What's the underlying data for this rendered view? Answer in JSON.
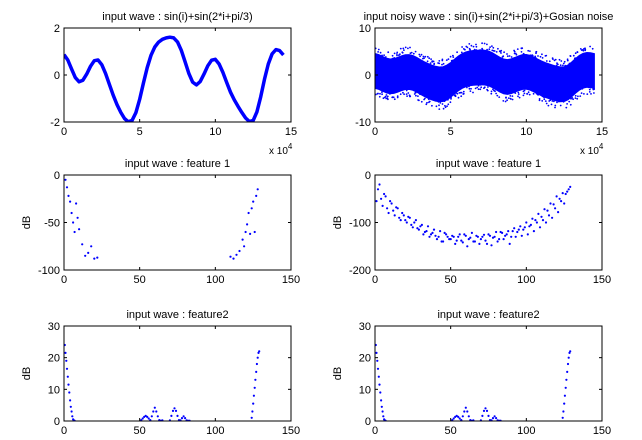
{
  "figure": {
    "background": "#ffffff",
    "plot_color": "#0000ff",
    "axis_color": "#000000"
  },
  "chart_data": [
    {
      "id": "p1",
      "type": "line",
      "title": "input wave : sin(i)+sin(2*i+pi/3)",
      "xlabel": "",
      "ylabel": "",
      "x_multiplier": "x 10",
      "x_multiplier_exp": "4",
      "xlim": [
        0,
        15
      ],
      "ylim": [
        -2,
        2
      ],
      "xticks": [
        0,
        5,
        10,
        15
      ],
      "yticks": [
        -2,
        0,
        2
      ],
      "series": [
        {
          "x": [
            0,
            0.25,
            0.5,
            0.75,
            1,
            1.25,
            1.5,
            1.75,
            2,
            2.25,
            2.5,
            2.75,
            3,
            3.25,
            3.5,
            3.75,
            4,
            4.25,
            4.5,
            4.75,
            5,
            5.25,
            5.5,
            5.75,
            6,
            6.25,
            6.5,
            6.75,
            7,
            7.25,
            7.5,
            7.75,
            8,
            8.25,
            8.5,
            8.75,
            9,
            9.25,
            9.5,
            9.75,
            10,
            10.25,
            10.5,
            10.75,
            11,
            11.25,
            11.5,
            11.75,
            12,
            12.25,
            12.5,
            12.75,
            13,
            13.25,
            13.5,
            13.75,
            14,
            14.25,
            14.5
          ],
          "y": [
            0.87,
            0.64,
            0.25,
            -0.11,
            -0.29,
            -0.22,
            0.04,
            0.37,
            0.61,
            0.64,
            0.44,
            0.06,
            -0.4,
            -0.86,
            -1.26,
            -1.59,
            -1.85,
            -1.99,
            -1.93,
            -1.6,
            -1.03,
            -0.35,
            0.31,
            0.84,
            1.19,
            1.4,
            1.52,
            1.58,
            1.61,
            1.58,
            1.41,
            1.05,
            0.56,
            0.06,
            -0.3,
            -0.42,
            -0.28,
            0.04,
            0.39,
            0.63,
            0.67,
            0.47,
            0.11,
            -0.32,
            -0.73,
            -1.06,
            -1.33,
            -1.59,
            -1.83,
            -1.98,
            -1.93,
            -1.57,
            -0.93,
            -0.18,
            0.47,
            0.9,
            1.08,
            1.04,
            0.85
          ]
        }
      ]
    },
    {
      "id": "p2",
      "type": "scatter",
      "title": "input noisy wave  : sin(i)+sin(2*i+pi/3)+Gosian noise",
      "xlabel": "",
      "ylabel": "",
      "x_multiplier": "x 10",
      "x_multiplier_exp": "4",
      "xlim": [
        0,
        15
      ],
      "ylim": [
        -10,
        10
      ],
      "xticks": [
        0,
        5,
        10,
        15
      ],
      "yticks": [
        -10,
        0,
        10
      ],
      "noise_band": 3.7,
      "series": [
        {
          "x": [
            0,
            0.25,
            0.5,
            0.75,
            1,
            1.25,
            1.5,
            1.75,
            2,
            2.25,
            2.5,
            2.75,
            3,
            3.25,
            3.5,
            3.75,
            4,
            4.25,
            4.5,
            4.75,
            5,
            5.25,
            5.5,
            5.75,
            6,
            6.25,
            6.5,
            6.75,
            7,
            7.25,
            7.5,
            7.75,
            8,
            8.25,
            8.5,
            8.75,
            9,
            9.25,
            9.5,
            9.75,
            10,
            10.25,
            10.5,
            10.75,
            11,
            11.25,
            11.5,
            11.75,
            12,
            12.25,
            12.5,
            12.75,
            13,
            13.25,
            13.5,
            13.75,
            14,
            14.25,
            14.5
          ],
          "y": [
            0.87,
            0.64,
            0.25,
            -0.11,
            -0.29,
            -0.22,
            0.04,
            0.37,
            0.61,
            0.64,
            0.44,
            0.06,
            -0.4,
            -0.86,
            -1.26,
            -1.59,
            -1.85,
            -1.99,
            -1.93,
            -1.6,
            -1.03,
            -0.35,
            0.31,
            0.84,
            1.19,
            1.4,
            1.52,
            1.58,
            1.61,
            1.58,
            1.41,
            1.05,
            0.56,
            0.06,
            -0.3,
            -0.42,
            -0.28,
            0.04,
            0.39,
            0.63,
            0.67,
            0.47,
            0.11,
            -0.32,
            -0.73,
            -1.06,
            -1.33,
            -1.59,
            -1.83,
            -1.98,
            -1.93,
            -1.57,
            -0.93,
            -0.18,
            0.47,
            0.9,
            1.08,
            1.04,
            0.85
          ]
        }
      ]
    },
    {
      "id": "p3",
      "type": "scatter",
      "title": "input wave : feature 1",
      "xlabel": "",
      "ylabel": "dB",
      "xlim": [
        0,
        150
      ],
      "ylim": [
        -100,
        0
      ],
      "xticks": [
        0,
        50,
        100,
        150
      ],
      "yticks": [
        -100,
        -50,
        0
      ],
      "series": [
        {
          "x": [
            1,
            2,
            3,
            4,
            5,
            6,
            7,
            8,
            9,
            10,
            12,
            14,
            16,
            18,
            20,
            22,
            110,
            112,
            114,
            116,
            118,
            119,
            120,
            121,
            122,
            123,
            124,
            125,
            126,
            127,
            128
          ],
          "y": [
            -5,
            -13,
            -22,
            -28,
            -40,
            -50,
            -60,
            -30,
            -45,
            -57,
            -73,
            -85,
            -82,
            -75,
            -88,
            -87,
            -86,
            -88,
            -84,
            -80,
            -68,
            -75,
            -60,
            -52,
            -40,
            -62,
            -35,
            -28,
            -60,
            -22,
            -15
          ]
        }
      ]
    },
    {
      "id": "p4",
      "type": "scatter",
      "title": "input wave : feature 1",
      "xlabel": "",
      "ylabel": "dB",
      "xlim": [
        0,
        150
      ],
      "ylim": [
        -200,
        0
      ],
      "xticks": [
        0,
        50,
        100,
        150
      ],
      "yticks": [
        -200,
        -100,
        0
      ],
      "series": [
        {
          "x": [
            1,
            3,
            5,
            7,
            9,
            11,
            13,
            15,
            17,
            19,
            21,
            23,
            25,
            27,
            29,
            31,
            33,
            35,
            37,
            39,
            41,
            43,
            45,
            47,
            49,
            51,
            53,
            55,
            57,
            59,
            61,
            63,
            65,
            67,
            69,
            71,
            73,
            75,
            77,
            79,
            81,
            83,
            85,
            87,
            89,
            91,
            93,
            95,
            97,
            99,
            101,
            103,
            105,
            107,
            109,
            111,
            113,
            115,
            117,
            119,
            121,
            123,
            125,
            127,
            129,
            2,
            4,
            6,
            8,
            10,
            12,
            14,
            16,
            18,
            20,
            22,
            24,
            26,
            28,
            30,
            32,
            34,
            36,
            38,
            40,
            42,
            44,
            46,
            48,
            50,
            52,
            54,
            56,
            58,
            60,
            62,
            64,
            66,
            68,
            70,
            72,
            74,
            76,
            78,
            80,
            82,
            84,
            86,
            88,
            90,
            92,
            94,
            96,
            98,
            100,
            102,
            104,
            106,
            108,
            110,
            112,
            114,
            116,
            118,
            120,
            122,
            124,
            126,
            128
          ],
          "y": [
            -55,
            -20,
            -65,
            -45,
            -80,
            -60,
            -85,
            -70,
            -95,
            -85,
            -100,
            -90,
            -110,
            -95,
            -115,
            -105,
            -120,
            -108,
            -125,
            -115,
            -135,
            -118,
            -140,
            -125,
            -135,
            -128,
            -145,
            -130,
            -138,
            -125,
            -150,
            -132,
            -140,
            -128,
            -145,
            -130,
            -138,
            -125,
            -148,
            -130,
            -140,
            -120,
            -135,
            -125,
            -145,
            -118,
            -130,
            -115,
            -128,
            -110,
            -125,
            -105,
            -118,
            -100,
            -110,
            -95,
            -100,
            -85,
            -90,
            -70,
            -78,
            -55,
            -60,
            -35,
            -25,
            -30,
            -50,
            -40,
            -70,
            -55,
            -75,
            -68,
            -90,
            -80,
            -95,
            -88,
            -105,
            -100,
            -112,
            -108,
            -125,
            -118,
            -130,
            -122,
            -128,
            -130,
            -140,
            -122,
            -130,
            -135,
            -130,
            -138,
            -125,
            -142,
            -128,
            -135,
            -122,
            -140,
            -130,
            -135,
            -126,
            -145,
            -128,
            -132,
            -120,
            -135,
            -122,
            -128,
            -118,
            -130,
            -112,
            -120,
            -108,
            -115,
            -100,
            -108,
            -92,
            -95,
            -82,
            -88,
            -72,
            -75,
            -60,
            -62,
            -45,
            -50,
            -38,
            -40,
            -30
          ]
        }
      ]
    },
    {
      "id": "p5",
      "type": "scatter",
      "title": "input wave : feature2",
      "xlabel": "",
      "ylabel": "dB",
      "xlim": [
        0,
        150
      ],
      "ylim": [
        0,
        30
      ],
      "xticks": [
        0,
        50,
        100,
        150
      ],
      "yticks": [
        0,
        10,
        20,
        30
      ],
      "series": [
        {
          "x": [
            0.5,
            1,
            1.5,
            2,
            2.5,
            3,
            3.5,
            4,
            4.5,
            5,
            5.5,
            6,
            6.5,
            7,
            51,
            52,
            53,
            54,
            55,
            56,
            57,
            58,
            59,
            60,
            61,
            62,
            63,
            64,
            65,
            70,
            71,
            72,
            73,
            74,
            75,
            76,
            77,
            78,
            79,
            80,
            81,
            82,
            83,
            124,
            124.5,
            125,
            125.5,
            126,
            126.5,
            127,
            127.5,
            128,
            128.5,
            129
          ],
          "y": [
            24,
            21.5,
            19,
            16.5,
            14,
            11.5,
            9,
            6.5,
            4.5,
            3,
            1.5,
            0.5,
            0.2,
            0.1,
            0.3,
            0.8,
            1.3,
            1.6,
            1.3,
            0.8,
            0.3,
            1.5,
            3,
            4.2,
            3,
            1.5,
            0.3,
            0.1,
            0.2,
            0.2,
            1.6,
            3.2,
            4,
            3.2,
            1.6,
            0.3,
            0.2,
            0.9,
            1.5,
            0.9,
            0.2,
            0.1,
            0.1,
            1,
            3,
            5.5,
            8,
            10.5,
            13,
            15.5,
            18,
            20,
            21.5,
            22
          ]
        }
      ]
    },
    {
      "id": "p6",
      "type": "scatter",
      "title": "input wave : feature2",
      "xlabel": "",
      "ylabel": "dB",
      "xlim": [
        0,
        150
      ],
      "ylim": [
        0,
        30
      ],
      "xticks": [
        0,
        50,
        100,
        150
      ],
      "yticks": [
        0,
        10,
        20,
        30
      ],
      "series": [
        {
          "x": [
            0.5,
            1,
            1.5,
            2,
            2.5,
            3,
            3.5,
            4,
            4.5,
            5,
            5.5,
            6,
            6.5,
            7,
            51,
            52,
            53,
            54,
            55,
            56,
            57,
            58,
            59,
            60,
            61,
            62,
            63,
            64,
            65,
            70,
            71,
            72,
            73,
            74,
            75,
            76,
            77,
            78,
            79,
            80,
            81,
            82,
            83,
            124,
            124.5,
            125,
            125.5,
            126,
            126.5,
            127,
            127.5,
            128,
            128.5,
            129
          ],
          "y": [
            24,
            21.5,
            19,
            16.5,
            14,
            11.5,
            9,
            6.5,
            4.5,
            3,
            1.5,
            0.5,
            0.2,
            0.1,
            0.3,
            0.8,
            1.3,
            1.6,
            1.3,
            0.8,
            0.3,
            1.5,
            3,
            4.2,
            3,
            1.5,
            0.3,
            0.1,
            0.2,
            0.2,
            1.6,
            3.2,
            4,
            3.2,
            1.6,
            0.3,
            0.2,
            0.9,
            1.5,
            0.9,
            0.2,
            0.1,
            0.1,
            1,
            3,
            5.5,
            8,
            10.5,
            13,
            15.5,
            18,
            20,
            21.5,
            22
          ]
        }
      ]
    }
  ]
}
